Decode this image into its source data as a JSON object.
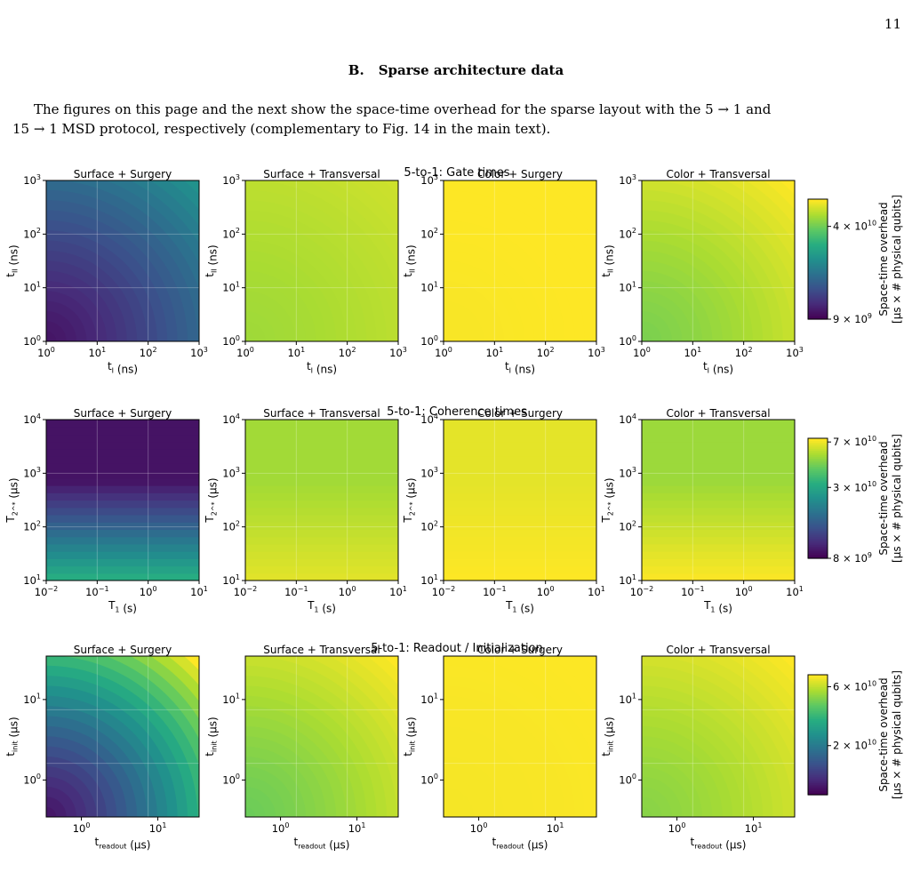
{
  "page": {
    "number": "11",
    "section_label": "B.",
    "section_title": "Sparse architecture data",
    "intro_line1": "The figures on this page and the next show the space-time overhead for the sparse layout with the 5 → 1 and",
    "intro_line2": "15 → 1 MSD protocol, respectively (complementary to Fig. 14 in the main text)."
  },
  "chart_data": [
    {
      "type": "heatmap",
      "title": "5-to-1: Gate times",
      "panel_titles": [
        "Surface + Surgery",
        "Surface + Transversal",
        "Color + Surgery",
        "Color + Transversal"
      ],
      "xlabel": "t_I (ns)",
      "ylabel": "t_II (ns)",
      "x_scale": "log",
      "y_scale": "log",
      "xlim": [
        1,
        1000
      ],
      "ylim": [
        1,
        1000
      ],
      "x_ticks": [
        "10^0",
        "10^1",
        "10^2",
        "10^3"
      ],
      "y_ticks": [
        "10^0",
        "10^1",
        "10^2",
        "10^3"
      ],
      "colorbar": {
        "label_line1": "Space-time overhead",
        "label_line2": "[μs × # physical qubits]",
        "ticks": [
          "4 × 10^10",
          "9 × 10^9"
        ],
        "range": [
          9000000000.0,
          62000000000.0
        ]
      },
      "panel_levels_approx": [
        {
          "panel": "Surface + Surgery",
          "low_corner": 10000000000.0,
          "high_corner": 24000000000.0
        },
        {
          "panel": "Surface + Transversal",
          "low_corner": 47000000000.0,
          "high_corner": 54000000000.0
        },
        {
          "panel": "Color + Surgery",
          "low_corner": 61000000000.0,
          "high_corner": 63000000000.0
        },
        {
          "panel": "Color + Transversal",
          "low_corner": 42000000000.0,
          "high_corner": 62000000000.0
        }
      ]
    },
    {
      "type": "heatmap",
      "title": "5-to-1: Coherence times",
      "panel_titles": [
        "Surface + Surgery",
        "Surface + Transversal",
        "Color + Surgery",
        "Color + Transversal"
      ],
      "xlabel": "T_1 (s)",
      "ylabel": "T_2^* (μs)",
      "x_scale": "log",
      "y_scale": "log",
      "xlim": [
        0.01,
        10
      ],
      "ylim": [
        10,
        10000
      ],
      "x_ticks": [
        "10^-2",
        "10^-1",
        "10^0",
        "10^1"
      ],
      "y_ticks": [
        "10^1",
        "10^2",
        "10^3",
        "10^4"
      ],
      "colorbar": {
        "label_line1": "Space-time overhead",
        "label_line2": "[μs × # physical qubits]",
        "ticks": [
          "7 × 10^10",
          "3 × 10^10",
          "8 × 10^9"
        ],
        "range": [
          8000000000.0,
          75000000000.0
        ]
      },
      "panel_levels_approx": [
        {
          "panel": "Surface + Surgery",
          "at_T2_10us": 32000000000.0,
          "at_T2_10000us": 9000000000.0
        },
        {
          "panel": "Surface + Transversal",
          "at_T2_10us": 68000000000.0,
          "at_T2_10000us": 55000000000.0
        },
        {
          "panel": "Color + Surgery",
          "at_T2_10us": 75000000000.0,
          "at_T2_10000us": 69000000000.0
        },
        {
          "panel": "Color + Transversal",
          "at_T2_10us": 74000000000.0,
          "at_T2_10000us": 54000000000.0
        }
      ]
    },
    {
      "type": "heatmap",
      "title": "5-to-1: Readout / Initialization",
      "panel_titles": [
        "Surface + Surgery",
        "Surface + Transversal",
        "Color + Surgery",
        "Color + Transversal"
      ],
      "xlabel": "t_readout (μs)",
      "ylabel": "t_init (μs)",
      "x_scale": "log",
      "y_scale": "log",
      "xlim": [
        0.3,
        30
      ],
      "ylim": [
        0.3,
        30
      ],
      "x_ticks": [
        "10^0",
        "10^1"
      ],
      "y_ticks": [
        "10^0",
        "10^1"
      ],
      "colorbar": {
        "label_line1": "Space-time overhead",
        "label_line2": "[μs × # physical qubits]",
        "ticks": [
          "6 × 10^10",
          "2 × 10^10"
        ],
        "range": [
          8000000000.0,
          75000000000.0
        ]
      },
      "panel_levels_approx": [
        {
          "panel": "Surface + Surgery",
          "low_corner": 9000000000.0,
          "high_corner": 75000000000.0
        },
        {
          "panel": "Surface + Transversal",
          "low_corner": 45000000000.0,
          "high_corner": 75000000000.0
        },
        {
          "panel": "Color + Surgery",
          "low_corner": 73000000000.0,
          "high_corner": 75000000000.0
        },
        {
          "panel": "Color + Transversal",
          "low_corner": 50000000000.0,
          "high_corner": 75000000000.0
        }
      ]
    }
  ]
}
